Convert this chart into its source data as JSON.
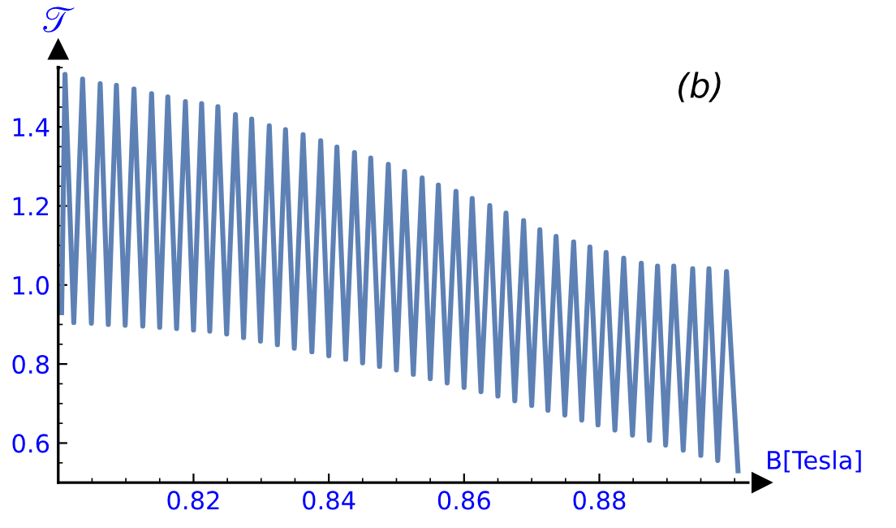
{
  "chart_data": {
    "type": "line",
    "xlabel": "B[Tesla]",
    "ylabel": "𝒯",
    "annotations": [
      "(b)"
    ],
    "xlim": [
      0.8,
      0.902
    ],
    "ylim": [
      0.5,
      1.55
    ],
    "xticks": [
      0.82,
      0.84,
      0.86,
      0.88
    ],
    "yticks": [
      0.6,
      0.8,
      {
        "value": 1.0,
        "label": "1.0"
      },
      1.2,
      1.4
    ],
    "grid": false,
    "series": [
      {
        "color": "#5e81b5",
        "x": [
          0.8005,
          0.801,
          0.8023,
          0.8036,
          0.8049,
          0.8062,
          0.8074,
          0.8086,
          0.8099,
          0.8112,
          0.8125,
          0.8138,
          0.815,
          0.8162,
          0.8175,
          0.8188,
          0.82,
          0.8212,
          0.8224,
          0.8236,
          0.8249,
          0.8262,
          0.8274,
          0.8286,
          0.8299,
          0.8312,
          0.8324,
          0.8336,
          0.8349,
          0.8362,
          0.8375,
          0.8388,
          0.84,
          0.8412,
          0.8425,
          0.8438,
          0.845,
          0.8462,
          0.8475,
          0.8488,
          0.85,
          0.8512,
          0.8525,
          0.8538,
          0.855,
          0.8562,
          0.8575,
          0.8588,
          0.86,
          0.8612,
          0.8625,
          0.8638,
          0.865,
          0.8662,
          0.8675,
          0.8688,
          0.87,
          0.8712,
          0.8724,
          0.8736,
          0.8749,
          0.8762,
          0.8774,
          0.8786,
          0.8798,
          0.881,
          0.8823,
          0.8836,
          0.8849,
          0.8862,
          0.8874,
          0.8886,
          0.8898,
          0.891,
          0.8924,
          0.8938,
          0.895,
          0.8962,
          0.8975,
          0.8988,
          0.9005
        ],
        "values": [
          0.93,
          1.533,
          0.905,
          1.521,
          0.903,
          1.509,
          0.9,
          1.505,
          0.898,
          1.496,
          0.896,
          1.484,
          0.893,
          1.476,
          0.89,
          1.464,
          0.886,
          1.459,
          0.883,
          1.451,
          0.876,
          1.431,
          0.867,
          1.42,
          0.858,
          1.403,
          0.849,
          1.393,
          0.84,
          1.38,
          0.831,
          1.365,
          0.821,
          1.349,
          0.812,
          1.335,
          0.803,
          1.321,
          0.794,
          1.305,
          0.785,
          1.287,
          0.774,
          1.271,
          0.763,
          1.253,
          0.752,
          1.237,
          0.741,
          1.219,
          0.73,
          1.201,
          0.719,
          1.182,
          0.707,
          1.163,
          0.695,
          1.14,
          0.683,
          1.123,
          0.671,
          1.109,
          0.658,
          1.096,
          0.646,
          1.082,
          0.633,
          1.068,
          0.62,
          1.055,
          0.607,
          1.048,
          0.595,
          1.048,
          0.582,
          1.041,
          0.569,
          1.041,
          0.556,
          1.034,
          0.53
        ]
      }
    ]
  }
}
